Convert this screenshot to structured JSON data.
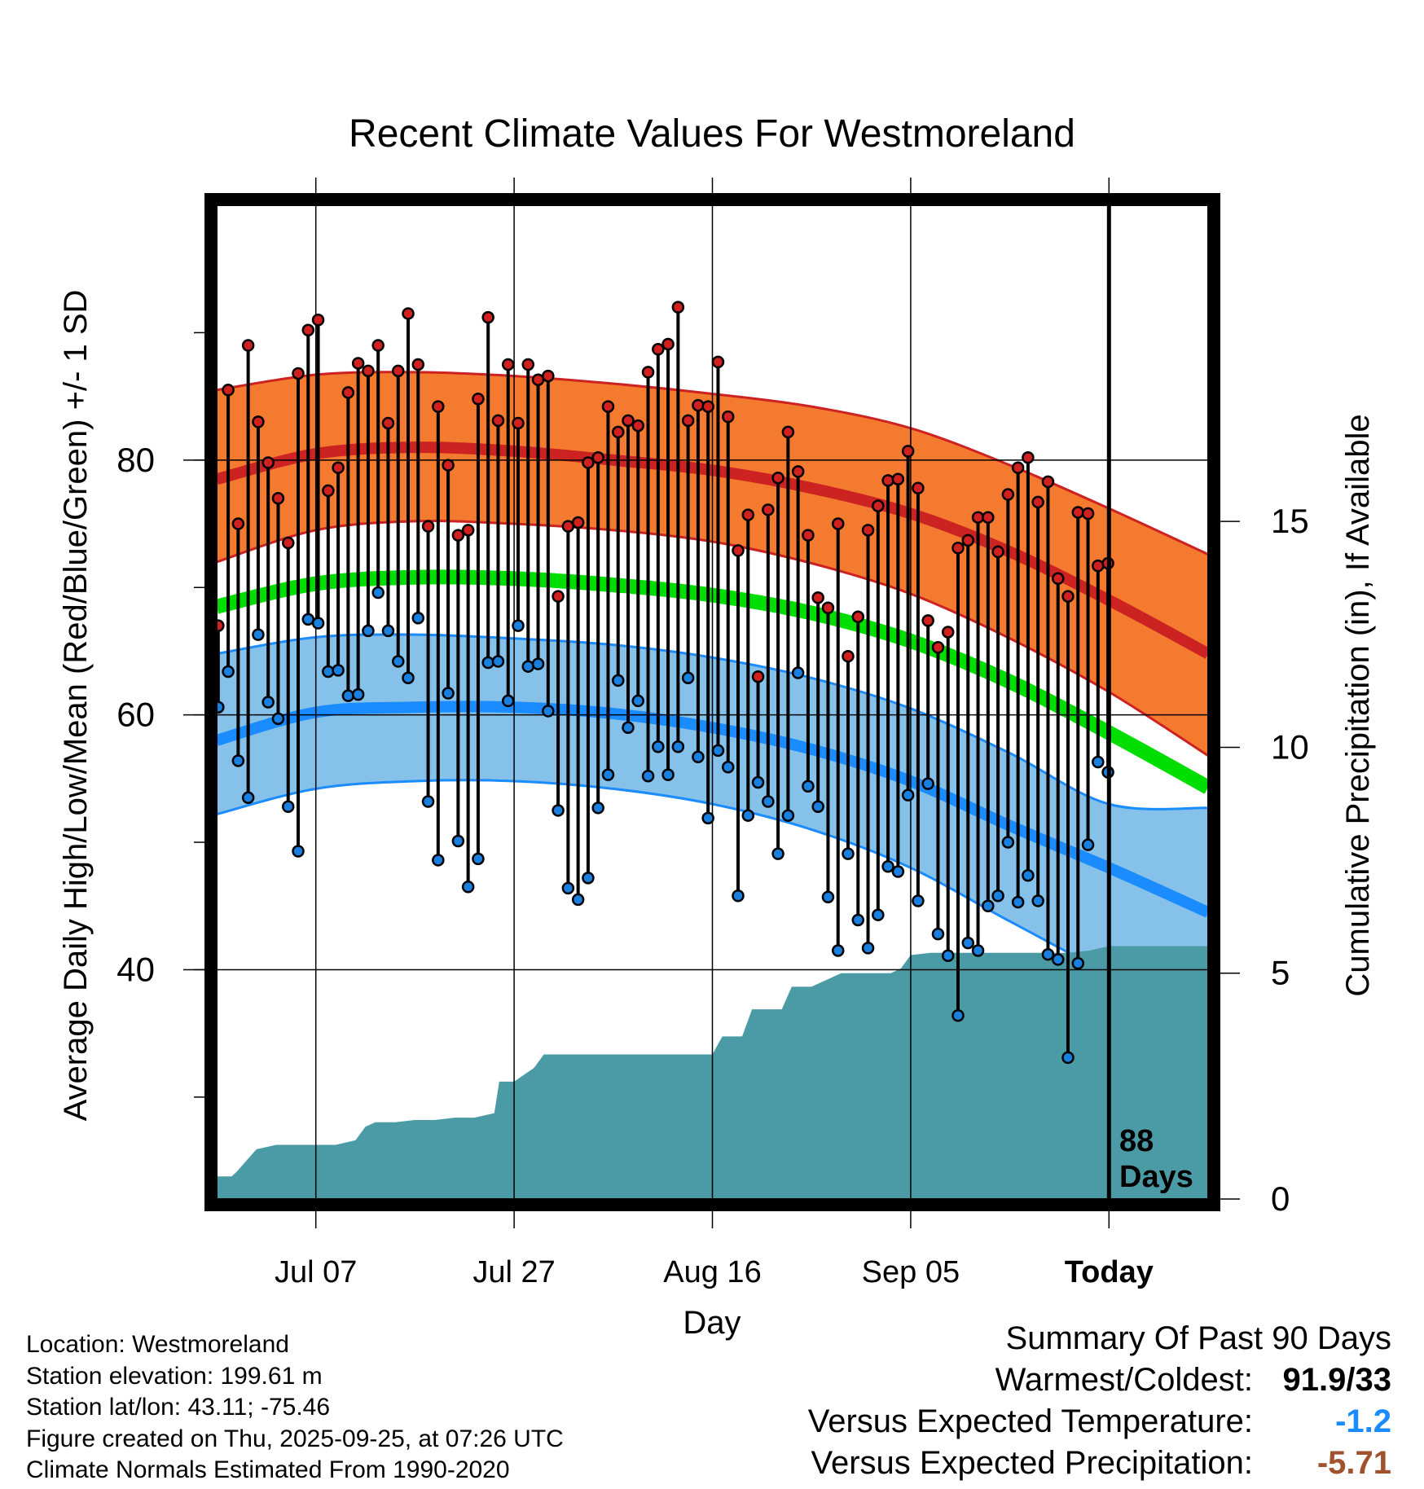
{
  "chart_data": {
    "type": "line",
    "title": "Recent Climate Values For Westmoreland",
    "xlabel": "Day",
    "ylabel": "Average Daily High/Low/Mean (Red/Blue/Green) +/- 1 SD",
    "y2label": "Cumulative Precipitation (in), If Available",
    "xlim": [
      -10,
      90
    ],
    "ylim": [
      22,
      100
    ],
    "y2lim": [
      0,
      22
    ],
    "x_ticks": [
      {
        "x": 0,
        "label": "Jul 07"
      },
      {
        "x": 20,
        "label": "Jul 27"
      },
      {
        "x": 40,
        "label": "Aug 16"
      },
      {
        "x": 60,
        "label": "Sep 05"
      },
      {
        "x": 80,
        "label": "Today"
      }
    ],
    "y_ticks": [
      40,
      60,
      80
    ],
    "y2_ticks": [
      0,
      5,
      10,
      15
    ],
    "today_x": 80,
    "today_annotation": [
      "88",
      "Days"
    ],
    "colors": {
      "high_band": "#f47a30",
      "high_line": "#cc2222",
      "mean_line": "#00dd00",
      "low_band": "#85c1e9",
      "low_line": "#1a8cff",
      "precip": "#4a9ba5",
      "high_point": "#d02020",
      "low_point": "#1a80e0"
    },
    "normals": {
      "x": [
        -10,
        0,
        10,
        20,
        30,
        40,
        50,
        60,
        70,
        80,
        90
      ],
      "high_upper": [
        85.5,
        86.7,
        86.9,
        86.6,
        86.0,
        85.2,
        84.2,
        82.5,
        79.6,
        76.2,
        72.6
      ],
      "high_mean": [
        78.5,
        80.5,
        81.0,
        80.7,
        80.0,
        79.2,
        77.8,
        75.8,
        72.8,
        69.0,
        64.8
      ],
      "high_lower": [
        72.0,
        74.5,
        75.2,
        75.0,
        74.5,
        73.6,
        71.9,
        69.5,
        66.0,
        61.8,
        56.8
      ],
      "mean": [
        68.5,
        70.3,
        70.8,
        70.7,
        70.2,
        69.4,
        68.0,
        65.8,
        62.6,
        58.6,
        54.3
      ],
      "low_upper": [
        64.8,
        66.1,
        66.3,
        66.0,
        65.5,
        64.5,
        62.9,
        60.5,
        57.0,
        53.0,
        52.7
      ],
      "low_mean": [
        58.0,
        60.2,
        60.6,
        60.6,
        60.1,
        59.0,
        57.3,
        54.8,
        51.3,
        48.0,
        44.5
      ],
      "low_lower": [
        52.2,
        54.2,
        54.8,
        54.8,
        54.2,
        53.0,
        51.0,
        48.0,
        43.8,
        39.8,
        37.0
      ]
    },
    "series": [
      {
        "name": "Daily High",
        "values": [
          67,
          85.5,
          75,
          89,
          83,
          79.8,
          77,
          73.5,
          86.8,
          90.2,
          91,
          77.6,
          79.4,
          85.3,
          87.6,
          87,
          89,
          82.9,
          87,
          91.5,
          87.5,
          74.8,
          84.2,
          79.6,
          74.1,
          74.5,
          84.8,
          91.2,
          83.1,
          87.5,
          82.9,
          87.5,
          86.3,
          86.6,
          69.3,
          74.8,
          75.1,
          79.8,
          80.2,
          84.2,
          82.2,
          83.1,
          82.7,
          86.9,
          88.7,
          89.1,
          92,
          83.1,
          84.3,
          84.2,
          87.7,
          83.4,
          72.9,
          75.7,
          63,
          76.1,
          78.6,
          82.2,
          79.1,
          74.1,
          69.2,
          68.4,
          75,
          64.6,
          67.7,
          74.5,
          76.4,
          78.4,
          78.5,
          80.7,
          77.8,
          67.4,
          65.3,
          66.5,
          73.1,
          73.7,
          75.5,
          75.5,
          72.8,
          77.3,
          79.4,
          80.2,
          76.7,
          78.3,
          70.7,
          69.3,
          75.9,
          75.8,
          71.7,
          71.9
        ]
      },
      {
        "name": "Daily Low",
        "values": [
          60.6,
          63.4,
          56.4,
          53.5,
          66.3,
          61,
          59.7,
          52.8,
          49.3,
          67.5,
          67.2,
          63.4,
          63.5,
          61.5,
          61.6,
          66.6,
          69.6,
          66.6,
          64.2,
          62.9,
          67.6,
          53.2,
          48.6,
          61.7,
          50.1,
          46.5,
          48.7,
          64.1,
          64.2,
          61.1,
          67,
          63.8,
          64,
          60.3,
          52.5,
          46.4,
          45.5,
          47.2,
          52.7,
          55.3,
          62.7,
          59,
          61.1,
          55.2,
          57.5,
          55.3,
          57.5,
          62.9,
          56.7,
          51.9,
          57.2,
          55.9,
          45.8,
          52.1,
          54.7,
          53.2,
          49.1,
          52.1,
          63.3,
          54.4,
          52.8,
          45.7,
          41.5,
          49.1,
          43.9,
          41.7,
          44.3,
          48.1,
          47.7,
          53.7,
          45.4,
          54.6,
          42.8,
          41.1,
          36.4,
          42.1,
          41.5,
          45,
          45.8,
          50,
          45.3,
          47.4,
          45.4,
          41.2,
          40.8,
          33.1,
          40.5,
          49.8,
          56.3,
          55.5
        ]
      }
    ],
    "precip_cumulative": {
      "x": [
        -10,
        -8.5,
        -8,
        -6,
        -4,
        -2,
        0,
        2,
        4,
        5,
        6,
        8,
        10,
        12,
        14,
        16,
        18,
        18.5,
        20,
        22,
        23,
        24,
        26,
        28,
        30,
        32,
        34,
        36,
        38,
        40,
        41,
        42,
        43,
        44,
        46,
        47,
        48,
        50,
        52,
        53,
        54,
        56,
        58,
        59,
        60,
        62,
        64,
        66,
        68,
        70,
        72,
        74,
        76,
        78,
        80,
        90
      ],
      "values": [
        0.5,
        0.5,
        0.6,
        1.1,
        1.2,
        1.2,
        1.2,
        1.2,
        1.3,
        1.6,
        1.7,
        1.7,
        1.75,
        1.75,
        1.8,
        1.8,
        1.9,
        2.6,
        2.6,
        2.9,
        3.2,
        3.2,
        3.2,
        3.2,
        3.2,
        3.2,
        3.2,
        3.2,
        3.2,
        3.2,
        3.6,
        3.6,
        3.6,
        4.2,
        4.2,
        4.2,
        4.7,
        4.7,
        4.9,
        5.0,
        5.0,
        5.0,
        5.0,
        5.1,
        5.4,
        5.45,
        5.45,
        5.45,
        5.45,
        5.45,
        5.45,
        5.45,
        5.45,
        5.5,
        5.6,
        5.6
      ]
    }
  },
  "info": {
    "location": "Location: Westmoreland",
    "elevation": "Station elevation: 199.61 m",
    "latlon": "Station lat/lon: 43.11; -75.46",
    "created": "Figure created on Thu, 2025-09-25, at 07:26 UTC",
    "normals": "Climate Normals Estimated From 1990-2020"
  },
  "summary": {
    "title": "Summary Of Past 90 Days",
    "warm_cold_label": "Warmest/Coldest:",
    "warm_cold_value": "91.9/33",
    "temp_label": "Versus Expected Temperature:",
    "temp_value": "-1.2",
    "temp_color": "#1a8cff",
    "precip_label": "Versus Expected Precipitation:",
    "precip_value": "-5.71",
    "precip_color": "#a0522d"
  }
}
